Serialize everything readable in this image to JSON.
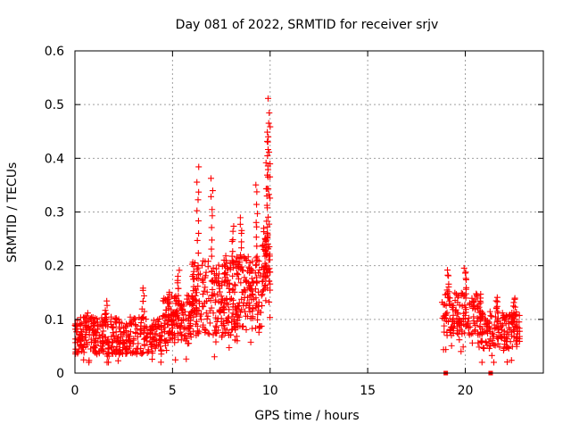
{
  "chart_data": {
    "type": "scatter",
    "title": "Day 081 of 2022, SRMTID for receiver srjv",
    "xlabel": "GPS time / hours",
    "ylabel": "SRMTID / TECUs",
    "xlim": [
      0,
      24
    ],
    "ylim": [
      0,
      0.6
    ],
    "xticks": [
      0,
      5,
      10,
      15,
      20
    ],
    "yticks": [
      0,
      0.1,
      0.2,
      0.3,
      0.4,
      0.5,
      0.6
    ],
    "grid": true,
    "marker": "plus",
    "color": "#ff0000",
    "segments": [
      {
        "t0": 0.0,
        "t1": 4.5,
        "base": 0.07,
        "spread": 0.035,
        "n": 380,
        "peaks": [
          [
            1.6,
            0.13
          ],
          [
            0.6,
            0.11
          ],
          [
            3.5,
            0.16
          ]
        ]
      },
      {
        "t0": 4.5,
        "t1": 6.0,
        "base": 0.1,
        "spread": 0.045,
        "n": 150,
        "peaks": [
          [
            5.3,
            0.19
          ],
          [
            4.8,
            0.15
          ]
        ]
      },
      {
        "t0": 6.0,
        "t1": 8.0,
        "base": 0.14,
        "spread": 0.07,
        "n": 200,
        "peaks": [
          [
            6.3,
            0.38
          ],
          [
            7.0,
            0.36
          ],
          [
            7.7,
            0.22
          ]
        ]
      },
      {
        "t0": 8.0,
        "t1": 9.6,
        "base": 0.15,
        "spread": 0.07,
        "n": 170,
        "peaks": [
          [
            8.5,
            0.29
          ],
          [
            8.1,
            0.27
          ],
          [
            9.3,
            0.35
          ]
        ]
      },
      {
        "t0": 9.6,
        "t1": 10.0,
        "base": 0.22,
        "spread": 0.07,
        "n": 70,
        "peaks": [
          [
            9.95,
            0.51
          ],
          [
            9.9,
            0.47
          ],
          [
            9.85,
            0.43
          ]
        ]
      },
      {
        "t0": 18.8,
        "t1": 20.8,
        "base": 0.11,
        "spread": 0.04,
        "n": 160,
        "peaks": [
          [
            19.1,
            0.19
          ],
          [
            20.0,
            0.2
          ]
        ]
      },
      {
        "t0": 20.8,
        "t1": 22.8,
        "base": 0.08,
        "spread": 0.035,
        "n": 160,
        "peaks": [
          [
            21.6,
            0.14
          ],
          [
            22.5,
            0.14
          ]
        ]
      }
    ],
    "zero_points": [
      19.0,
      21.3
    ]
  }
}
